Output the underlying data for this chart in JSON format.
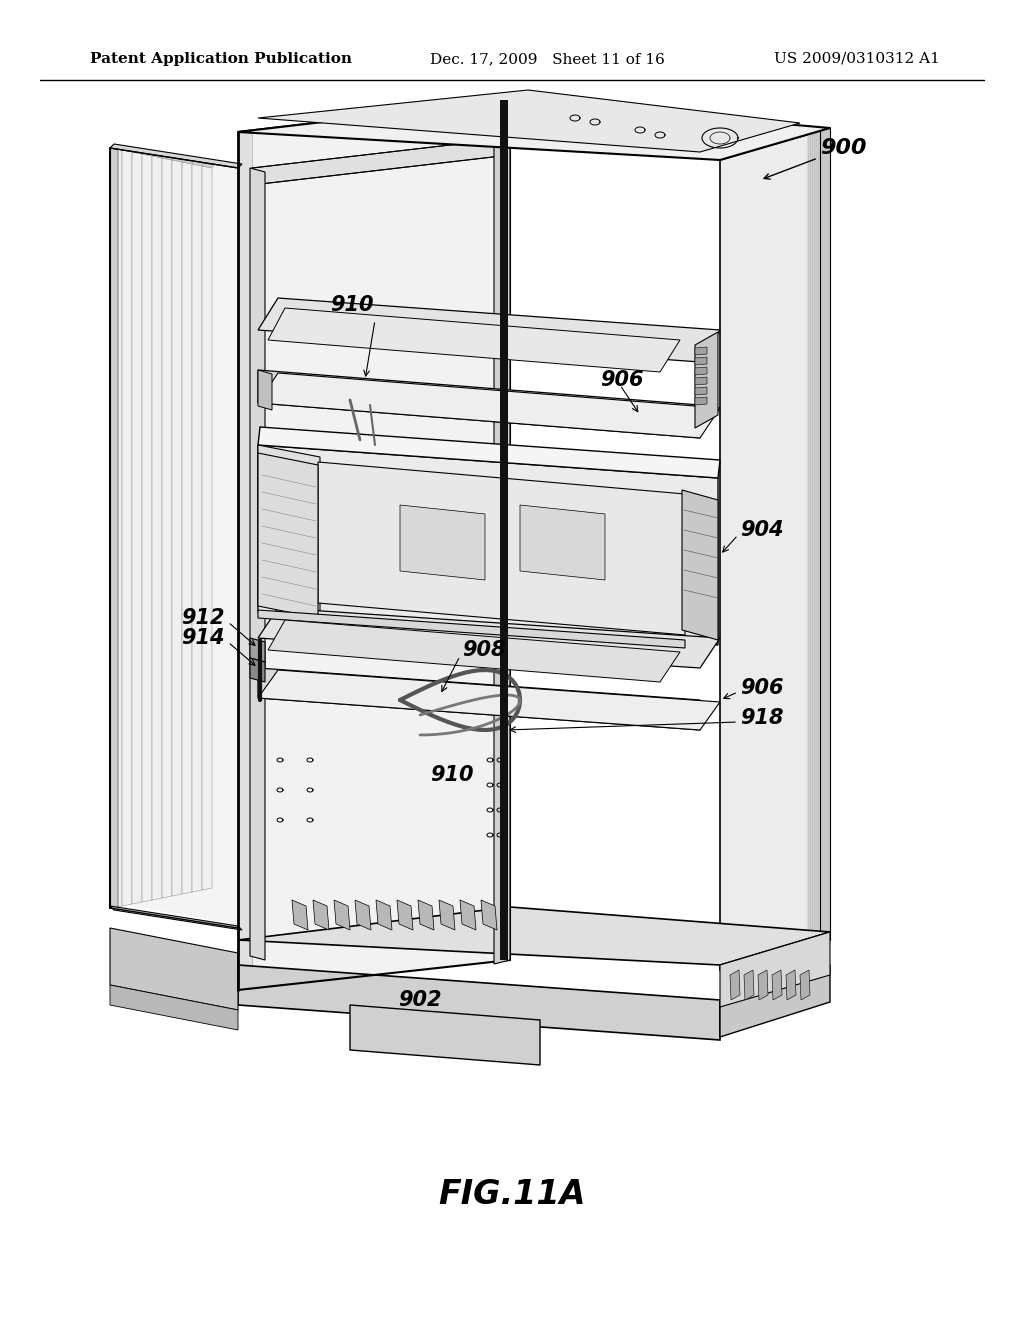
{
  "background_color": "#ffffff",
  "header_left": "Patent Application Publication",
  "header_mid": "Dec. 17, 2009   Sheet 11 of 16",
  "header_right": "US 2009/0310312 A1",
  "fig_label": "FIG.11A",
  "title_fontsize": 11,
  "label_fontsize": 15,
  "fig_label_fontsize": 24,
  "line_color": "#000000",
  "light_gray": "#e8e8e8",
  "mid_gray": "#c8c8c8",
  "dark_gray": "#a0a0a0",
  "very_light": "#f4f4f4"
}
